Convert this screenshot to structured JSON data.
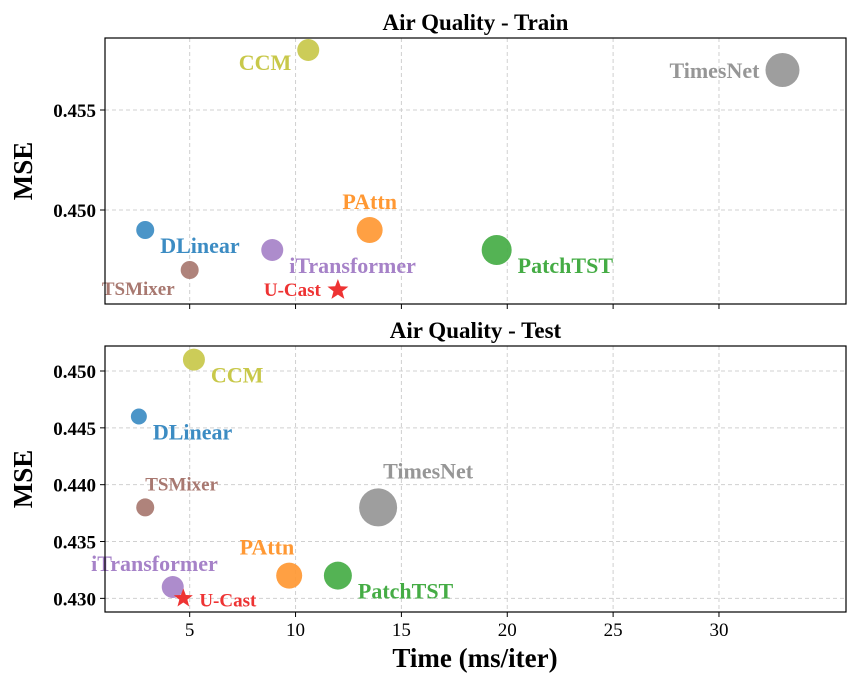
{
  "chart_data": [
    {
      "type": "scatter",
      "title": "Air Quality - Train",
      "xlabel": "",
      "ylabel": "MSE",
      "xlim": [
        1,
        36
      ],
      "ylim": [
        0.4453,
        0.4586
      ],
      "xticks": [
        5,
        10,
        15,
        20,
        25,
        30
      ],
      "yticks": [
        0.45,
        0.455
      ],
      "ytick_labels": [
        "0.450",
        "0.455"
      ],
      "grid": true,
      "points": [
        {
          "name": "CCM",
          "x": 10.6,
          "y": 0.458,
          "size": 11,
          "color": "#c8c84a",
          "marker": "circle",
          "label_pos": "left"
        },
        {
          "name": "TimesNet",
          "x": 33.0,
          "y": 0.457,
          "size": 17,
          "color": "#969696",
          "marker": "circle",
          "label_pos": "left"
        },
        {
          "name": "PAttn",
          "x": 13.5,
          "y": 0.449,
          "size": 13,
          "color": "#ff9833",
          "marker": "circle",
          "label_pos": "above"
        },
        {
          "name": "DLinear",
          "x": 2.9,
          "y": 0.449,
          "size": 9,
          "color": "#3c8cc3",
          "marker": "circle",
          "label_pos": "right"
        },
        {
          "name": "PatchTST",
          "x": 19.5,
          "y": 0.448,
          "size": 15,
          "color": "#45ac45",
          "marker": "circle",
          "label_pos": "right"
        },
        {
          "name": "iTransformer",
          "x": 8.9,
          "y": 0.448,
          "size": 11,
          "color": "#a682c8",
          "marker": "circle",
          "label_pos": "right"
        },
        {
          "name": "TSMixer",
          "x": 5.0,
          "y": 0.447,
          "size": 9,
          "color": "#a87870",
          "marker": "circle",
          "label_pos": "left"
        },
        {
          "name": "U-Cast",
          "x": 12.0,
          "y": 0.446,
          "size": 11,
          "color": "#ee3333",
          "marker": "star",
          "label_pos": "left"
        }
      ]
    },
    {
      "type": "scatter",
      "title": "Air Quality - Test",
      "xlabel": "Time (ms/iter)",
      "ylabel": "MSE",
      "xlim": [
        1,
        36
      ],
      "ylim": [
        0.4288,
        0.4522
      ],
      "xticks": [
        5,
        10,
        15,
        20,
        25,
        30
      ],
      "xtick_labels": [
        "5",
        "10",
        "15",
        "20",
        "25",
        "30"
      ],
      "yticks": [
        0.43,
        0.435,
        0.44,
        0.445,
        0.45
      ],
      "ytick_labels": [
        "0.430",
        "0.435",
        "0.440",
        "0.445",
        "0.450"
      ],
      "grid": true,
      "points": [
        {
          "name": "CCM",
          "x": 5.2,
          "y": 0.451,
          "size": 11,
          "color": "#c8c84a",
          "marker": "circle",
          "label_pos": "right"
        },
        {
          "name": "DLinear",
          "x": 2.6,
          "y": 0.446,
          "size": 8,
          "color": "#3c8cc3",
          "marker": "circle",
          "label_pos": "right"
        },
        {
          "name": "TSMixer",
          "x": 2.9,
          "y": 0.438,
          "size": 9,
          "color": "#a87870",
          "marker": "circle",
          "label_pos": "above-right"
        },
        {
          "name": "TimesNet",
          "x": 13.9,
          "y": 0.438,
          "size": 19,
          "color": "#969696",
          "marker": "circle",
          "label_pos": "above-right"
        },
        {
          "name": "PAttn",
          "x": 9.7,
          "y": 0.432,
          "size": 13,
          "color": "#ff9833",
          "marker": "circle",
          "label_pos": "above-left"
        },
        {
          "name": "PatchTST",
          "x": 12.0,
          "y": 0.432,
          "size": 14,
          "color": "#45ac45",
          "marker": "circle",
          "label_pos": "right"
        },
        {
          "name": "iTransformer",
          "x": 4.2,
          "y": 0.431,
          "size": 11,
          "color": "#a682c8",
          "marker": "circle",
          "label_pos": "above-left"
        },
        {
          "name": "U-Cast",
          "x": 4.7,
          "y": 0.43,
          "size": 10,
          "color": "#ee3333",
          "marker": "star",
          "label_pos": "right"
        }
      ]
    }
  ]
}
